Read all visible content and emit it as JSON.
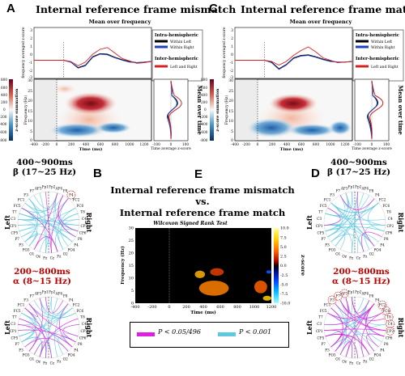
{
  "panels": {
    "A": {
      "letter": "A",
      "title": "Internal reference frame mismatch"
    },
    "C": {
      "letter": "C",
      "title": "Internal reference frame match"
    },
    "B": {
      "letter": "B"
    },
    "D": {
      "letter": "D"
    },
    "E": {
      "letter": "E"
    }
  },
  "top_plots": {
    "mean_over_frequency": "Mean over frequency",
    "mean_over_time": "Mean over time",
    "freq_ylabel": "frequency averaged z-score",
    "zsum_label": "z-score summation",
    "freq_label": "Frequency (Hz)",
    "time_label": "Time (ms)",
    "time_avg_label": "Time average z-score",
    "legend": {
      "intra_title": "Intra-hemispheric",
      "within_left": "Within Left",
      "within_right": "Within Right",
      "inter_title": "Inter-hemispheric",
      "left_right": "Left and Right"
    },
    "colors": {
      "within_left": "#000000",
      "within_right": "#1f3fbf",
      "left_right": "#d62020"
    }
  },
  "bands": {
    "beta_time": "400~900ms",
    "beta_freq": "β (17~25 Hz)",
    "alpha_time": "200~800ms",
    "alpha_freq": "α (8~15 Hz)"
  },
  "sides": {
    "left": "Left",
    "right": "Right"
  },
  "panelE": {
    "title_line1": "Internal reference frame mismatch",
    "title_line2": "vs.",
    "title_line3": "Internal reference frame match",
    "test": "Wilcoxon Signed Rank Test",
    "ylabel": "Frequency (Hz)",
    "xlabel": "Time (ms)",
    "cbar_label": "z-score"
  },
  "legend_bottom": {
    "magenta": "P < 0.05/496",
    "cyan": "P < 0.001",
    "magenta_color": "#e020e0",
    "cyan_color": "#5ec8e0"
  },
  "chart_data": [
    {
      "type": "line",
      "title": "Mean over frequency",
      "panel": "A",
      "x": [
        -400,
        -200,
        0,
        100,
        200,
        300,
        400,
        500,
        600,
        700,
        800,
        900,
        1000,
        1100,
        1200
      ],
      "xlim": [
        -400,
        1200
      ],
      "series": [
        {
          "name": "Within Left",
          "color": "#000000",
          "values": [
            0,
            0,
            0,
            -0.3,
            -1.2,
            -0.8,
            0.6,
            1.1,
            1.0,
            0.5,
            0.1,
            -0.2,
            -0.4,
            -0.3,
            -0.2
          ]
        },
        {
          "name": "Within Right",
          "color": "#1f3fbf",
          "values": [
            0,
            0,
            0,
            -0.3,
            -1.3,
            -0.9,
            0.5,
            1.0,
            0.9,
            0.4,
            0,
            -0.3,
            -0.4,
            -0.3,
            -0.2
          ]
        },
        {
          "name": "Left and Right",
          "color": "#d62020",
          "values": [
            0,
            0,
            0,
            -0.2,
            -0.9,
            -0.3,
            1.0,
            1.8,
            2.1,
            1.2,
            0.3,
            -0.1,
            -0.5,
            -0.4,
            -0.2
          ]
        }
      ]
    },
    {
      "type": "line",
      "title": "Mean over frequency",
      "panel": "C",
      "x": [
        -400,
        -200,
        0,
        100,
        200,
        300,
        400,
        500,
        600,
        700,
        800,
        900,
        1000,
        1100,
        1200
      ],
      "xlim": [
        -400,
        1200
      ],
      "series": [
        {
          "name": "Within Left",
          "color": "#000000",
          "values": [
            0,
            0,
            0,
            -0.3,
            -1.4,
            -0.7,
            0.4,
            0.8,
            0.9,
            0.6,
            0.2,
            -0.1,
            -0.3,
            -0.3,
            -0.2
          ]
        },
        {
          "name": "Within Right",
          "color": "#1f3fbf",
          "values": [
            0,
            0,
            0,
            -0.4,
            -1.5,
            -0.8,
            0.3,
            0.7,
            0.8,
            0.5,
            0.1,
            -0.2,
            -0.3,
            -0.3,
            -0.2
          ]
        },
        {
          "name": "Left and Right",
          "color": "#d62020",
          "values": [
            0,
            0,
            0,
            -0.2,
            -0.8,
            -0.2,
            0.8,
            1.6,
            2.2,
            1.4,
            0.4,
            0,
            -0.4,
            -0.3,
            -0.2
          ]
        }
      ]
    },
    {
      "type": "heatmap",
      "title": "Wilcoxon Signed Rank Test",
      "panel": "E",
      "xlabel": "Time (ms)",
      "ylabel": "Frequency (Hz)",
      "xlim": [
        -400,
        1200
      ],
      "ylim": [
        0,
        30
      ],
      "x_ticks": [
        -400,
        -200,
        0,
        200,
        400,
        600,
        800,
        1000,
        1200
      ],
      "y_ticks": [
        0,
        5,
        10,
        15,
        20,
        25,
        30
      ],
      "cbar_ticks": [
        10.0,
        7.5,
        5.0,
        2.5,
        0.0,
        -2.5,
        -5.0,
        -7.5,
        -10.0
      ],
      "hot_regions": [
        {
          "t": [
            300,
            420
          ],
          "f": [
            10,
            13
          ]
        },
        {
          "t": [
            480,
            640
          ],
          "f": [
            11,
            14
          ]
        },
        {
          "t": [
            350,
            700
          ],
          "f": [
            3,
            9
          ]
        },
        {
          "t": [
            1000,
            1150
          ],
          "f": [
            4,
            9
          ]
        },
        {
          "t": [
            1100,
            1200
          ],
          "f": [
            1,
            3
          ]
        }
      ]
    }
  ]
}
